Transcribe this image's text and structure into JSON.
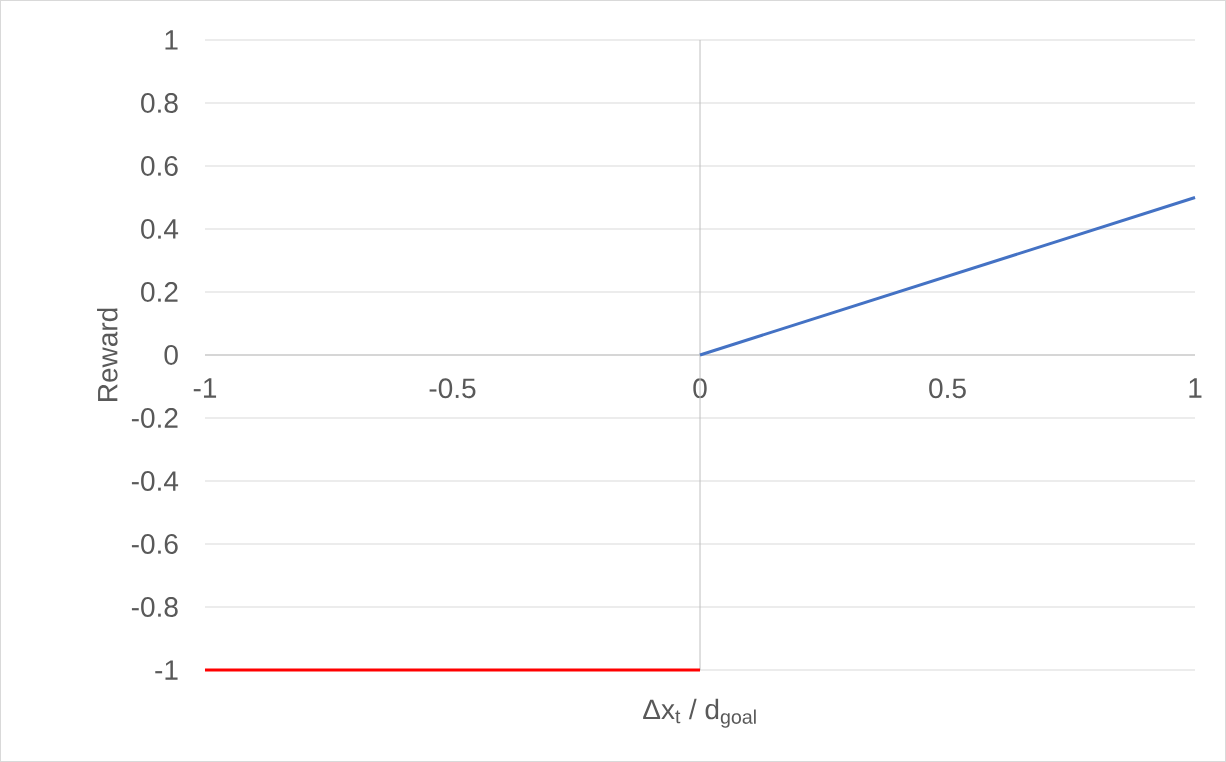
{
  "chart_data": {
    "type": "line",
    "xlabel": "Δx$_{t}$ / d$_{goal}$",
    "ylabel": "Reward",
    "xlim": [
      -1,
      1
    ],
    "xticks": [
      -1,
      -0.5,
      0,
      0.5,
      1
    ],
    "ylim": [
      -1,
      1
    ],
    "yticks": [
      -1,
      -0.8,
      -0.6,
      -0.4,
      -0.2,
      0,
      0.2,
      0.4,
      0.6,
      0.8,
      1
    ],
    "grid": "y",
    "legend": false,
    "marker": "none",
    "line_style": "solid",
    "series": [
      {
        "color": "#4472c4",
        "x": [
          0,
          1
        ],
        "values": [
          0,
          0.5
        ]
      },
      {
        "color": "#ff0000",
        "x": [
          -1,
          0
        ],
        "values": [
          -1,
          -1
        ]
      }
    ]
  }
}
